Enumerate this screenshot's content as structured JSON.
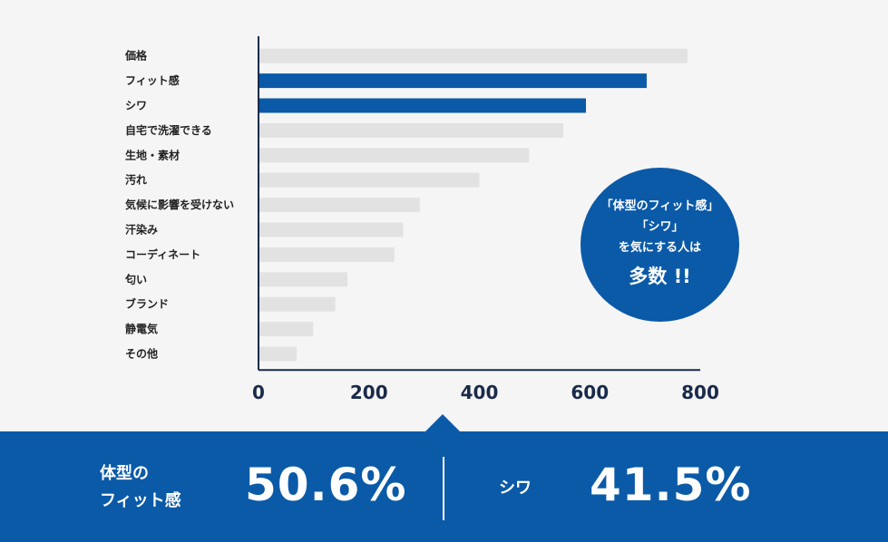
{
  "chart_data": {
    "type": "bar",
    "orientation": "horizontal",
    "categories": [
      "価格",
      "フィット感",
      "シワ",
      "自宅で洗濯できる",
      "生地・素材",
      "汚れ",
      "気候に影響を受けない",
      "汗染み",
      "コーディネート",
      "匂い",
      "ブランド",
      "静電気",
      "その他"
    ],
    "values": [
      777,
      703,
      593,
      552,
      490,
      400,
      292,
      262,
      246,
      161,
      139,
      99,
      69
    ],
    "highlight": [
      "フィット感",
      "シワ"
    ],
    "xlim": [
      0,
      800
    ],
    "xticks": [
      "0",
      "200",
      "400",
      "600",
      "800"
    ],
    "colors": {
      "bar": "#e2e2e2",
      "highlight": "#0a5aa8",
      "axis": "#1a2a4a"
    }
  },
  "callout": {
    "lines": [
      "「体型のフィット感」",
      "「シワ」",
      "を気にする人は"
    ],
    "emphasis": "多数 !!"
  },
  "stats": [
    {
      "label_lines": [
        "体型の",
        "フィット感"
      ],
      "value": "50.6%"
    },
    {
      "label_lines": [
        "シワ"
      ],
      "value": "41.5%"
    }
  ]
}
